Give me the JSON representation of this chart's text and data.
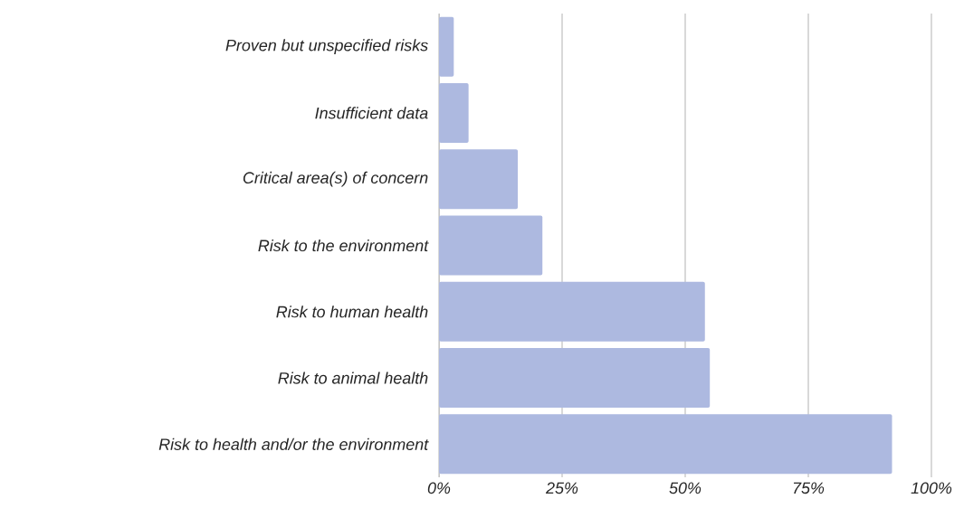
{
  "chart_data": {
    "type": "bar",
    "orientation": "horizontal",
    "categories": [
      "Proven but unspecified risks",
      "Insufficient data",
      "Critical area(s) of concern",
      "Risk to the environment",
      "Risk to human health",
      "Risk to animal health",
      "Risk to health and/or the environment"
    ],
    "values": [
      3,
      6,
      16,
      21,
      54,
      55,
      92
    ],
    "color": "#adb9e0",
    "xlim": [
      0,
      100
    ],
    "xticks": [
      {
        "value": 0,
        "label": "0%"
      },
      {
        "value": 25,
        "label": "25%"
      },
      {
        "value": 50,
        "label": "50%"
      },
      {
        "value": 75,
        "label": "75%"
      },
      {
        "value": 100,
        "label": "100%"
      }
    ],
    "grid": "x"
  }
}
